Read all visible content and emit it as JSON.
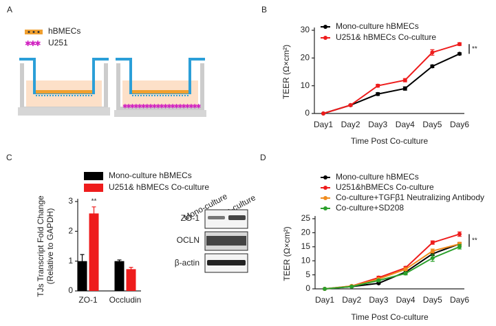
{
  "panel_labels": [
    "A",
    "B",
    "C",
    "D"
  ],
  "diagram": {
    "legend": [
      "hBMECs",
      "U251"
    ]
  },
  "blot": {
    "columns": [
      "Mono-culture",
      "Co-culture"
    ],
    "rows": [
      "ZO-1",
      "OCLN",
      "β-actin"
    ]
  },
  "chart_data": [
    {
      "type": "line",
      "categories": [
        "Day1",
        "Day2",
        "Day3",
        "Day4",
        "Day5",
        "Day6"
      ],
      "xlabel": "Time Post Co-culture",
      "ylabel": "TEER (Ω×cm²)",
      "ylim": [
        0,
        30
      ],
      "yticks": [
        0,
        10,
        20,
        30
      ],
      "legend": "upper left",
      "annotation": "**",
      "series": [
        {
          "name": "Mono-culture hBMECs",
          "color": "#000000",
          "values": [
            0,
            3,
            7,
            9,
            17,
            21.5
          ],
          "errors": [
            0,
            0.3,
            0.5,
            0.6,
            0.5,
            0.4
          ]
        },
        {
          "name": "U251& hBMECs Co-culture",
          "color": "#ee1c1c",
          "values": [
            0,
            3,
            10,
            12,
            22,
            25
          ],
          "errors": [
            0,
            0.3,
            0.5,
            0.6,
            1,
            0.5
          ]
        }
      ]
    },
    {
      "type": "bar",
      "categories": [
        "ZO-1",
        "Occludin"
      ],
      "ylabel": [
        "TJs Transcript Fold Change",
        "(Relative to GAPDH)"
      ],
      "ylim": [
        0,
        3
      ],
      "yticks": [
        0,
        1,
        2,
        3
      ],
      "legend": "top",
      "annotation": "**",
      "series": [
        {
          "name": "Mono-culture hBMECs",
          "color": "#000000",
          "values": [
            1.0,
            1.0
          ],
          "errors": [
            0.22,
            0.04
          ]
        },
        {
          "name": "U251& hBMECs Co-culture",
          "color": "#ee1c1c",
          "values": [
            2.6,
            0.73
          ],
          "errors": [
            0.22,
            0.06
          ]
        }
      ]
    },
    {
      "type": "line",
      "categories": [
        "Day1",
        "Day2",
        "Day3",
        "Day4",
        "Day5",
        "Day6"
      ],
      "xlabel": "Time Post Co-culture",
      "ylabel": "TEER (Ω×cm²)",
      "ylim": [
        0,
        25
      ],
      "yticks": [
        0,
        5,
        10,
        15,
        20,
        25
      ],
      "legend": "upper left",
      "annotation": "**",
      "series": [
        {
          "name": "Mono-culture hBMECs",
          "color": "#000000",
          "values": [
            0,
            0.8,
            2,
            6,
            12.5,
            16
          ],
          "errors": [
            0,
            0.2,
            0.3,
            0.5,
            0.6,
            0.5
          ]
        },
        {
          "name": "U251&hBMECs Co-culture",
          "color": "#ee1c1c",
          "values": [
            0,
            1,
            4,
            7.5,
            16.5,
            19.5
          ],
          "errors": [
            0,
            0.2,
            0.5,
            0.5,
            0.6,
            0.8
          ]
        },
        {
          "name": "Co-culture+TGFβ1 Neutralizing Antibody",
          "color": "#f08c1e",
          "values": [
            0,
            1,
            3.5,
            7,
            13.5,
            16
          ],
          "errors": [
            0,
            0.2,
            0.4,
            0.5,
            0.7,
            0.6
          ]
        },
        {
          "name": "Co-culture+SD208",
          "color": "#2ca02c",
          "values": [
            0,
            0.8,
            3,
            5.5,
            11,
            15
          ],
          "errors": [
            0,
            0.2,
            0.4,
            0.5,
            1.2,
            0.8
          ]
        }
      ]
    }
  ]
}
